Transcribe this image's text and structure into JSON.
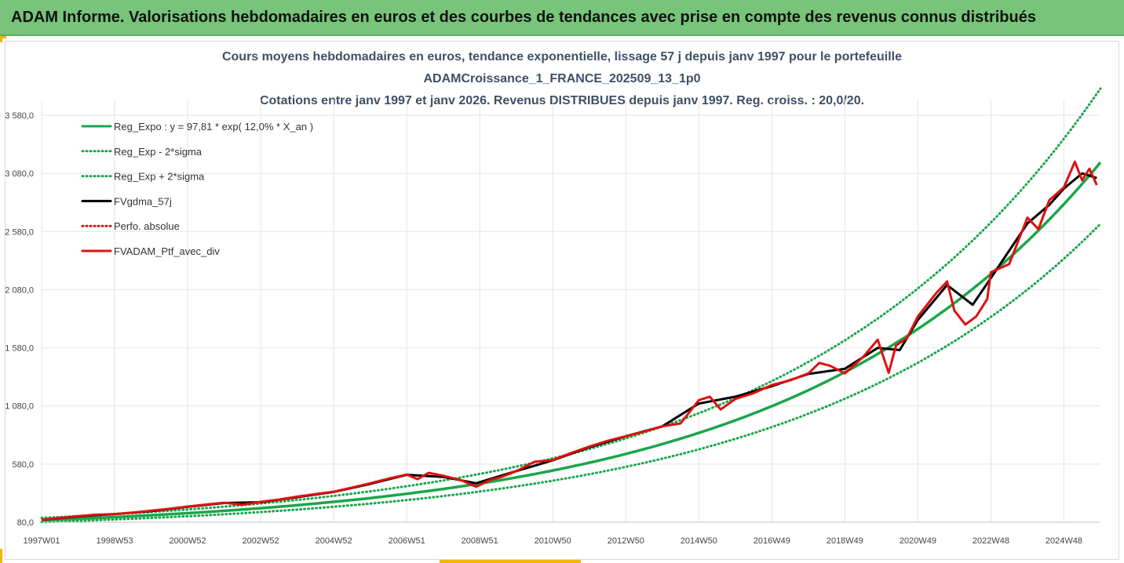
{
  "header": {
    "title": "ADAM Informe. Valorisations hebdomadaires en euros et des courbes de tendances avec prise en compte des revenus connus distribués"
  },
  "colors": {
    "header_bg": "#77c47a",
    "trend": "#1aa64a",
    "smooth": "#000000",
    "portfolio": "#e01010",
    "accent": "#f2b705"
  },
  "chart_data": {
    "type": "line",
    "title_lines": [
      "Cours moyens hebdomadaires  en euros, tendance exponentielle, lissage 57 j depuis janv 1997 pour le portefeuille",
      "ADAMCroissance_1_FRANCE_202509_13_1p0",
      "Cotations entre janv 1997 et janv 2026. Revenus DISTRIBUES depuis janv 1997. Reg. croiss. : 20,0/20."
    ],
    "x_tick_labels": [
      "1997W01",
      "1998W53",
      "2000W52",
      "2002W52",
      "2004W52",
      "2006W51",
      "2008W51",
      "2010W50",
      "2012W50",
      "2014W50",
      "2016W49",
      "2018W49",
      "2020W49",
      "2022W48",
      "2024W48"
    ],
    "x_ticks_years": [
      1997.0,
      1999.0,
      2001.0,
      2003.0,
      2005.0,
      2007.0,
      2009.0,
      2011.0,
      2013.0,
      2015.0,
      2017.0,
      2019.0,
      2021.0,
      2023.0,
      2025.0
    ],
    "xlim": [
      1997.0,
      2026.0
    ],
    "y_tick_labels": [
      "80,0",
      "580,0",
      "1 080,0",
      "1 580,0",
      "2 080,0",
      "2 580,0",
      "3 080,0",
      "3 580,0"
    ],
    "y_ticks": [
      80,
      580,
      1080,
      1580,
      2080,
      2580,
      3080,
      3580
    ],
    "ylim": [
      80,
      3580
    ],
    "regression": {
      "a": 97.81,
      "rate": 0.12,
      "band_factor": 1.2
    },
    "legend": [
      {
        "label": "Reg_Expo : y = 97,81 * exp( 12,0% *  X_an )",
        "style": "solid",
        "color": "#1aa64a"
      },
      {
        "label": "Reg_Exp - 2*sigma",
        "style": "dotted",
        "color": "#1aa64a"
      },
      {
        "label": "Reg_Exp + 2*sigma",
        "style": "dotted",
        "color": "#1aa64a"
      },
      {
        "label": "FVgdma_57j",
        "style": "solid",
        "color": "#000000"
      },
      {
        "label": "Perfo. absolue",
        "style": "dotted",
        "color": "#e01010"
      },
      {
        "label": "FVADAM_Ptf_avec_div",
        "style": "solid",
        "color": "#e01010"
      }
    ],
    "portfolio_series": {
      "name": "FVADAM_Ptf_avec_div",
      "x": [
        1997.0,
        1997.5,
        1998.0,
        1998.5,
        1999.0,
        1999.5,
        2000.0,
        2000.5,
        2001.0,
        2001.5,
        2002.0,
        2002.5,
        2003.0,
        2003.5,
        2004.0,
        2004.5,
        2005.0,
        2005.5,
        2006.0,
        2006.5,
        2007.0,
        2007.3,
        2007.6,
        2008.0,
        2008.5,
        2008.9,
        2009.3,
        2009.6,
        2010.0,
        2010.5,
        2011.0,
        2011.5,
        2012.0,
        2012.5,
        2013.0,
        2013.5,
        2014.0,
        2014.5,
        2015.0,
        2015.3,
        2015.6,
        2016.0,
        2016.5,
        2017.0,
        2017.5,
        2018.0,
        2018.3,
        2018.6,
        2019.0,
        2019.5,
        2019.9,
        2020.2,
        2020.4,
        2020.7,
        2021.0,
        2021.5,
        2021.8,
        2022.0,
        2022.3,
        2022.6,
        2022.9,
        2023.0,
        2023.5,
        2024.0,
        2024.3,
        2024.6,
        2025.0,
        2025.3,
        2025.5,
        2025.7,
        2025.9
      ],
      "y": [
        100,
        118,
        132,
        145,
        150,
        162,
        180,
        195,
        215,
        232,
        248,
        230,
        255,
        275,
        300,
        322,
        342,
        378,
        415,
        455,
        490,
        450,
        505,
        480,
        440,
        385,
        445,
        470,
        520,
        600,
        615,
        675,
        730,
        780,
        820,
        860,
        905,
        930,
        1130,
        1160,
        1050,
        1140,
        1190,
        1260,
        1300,
        1360,
        1450,
        1425,
        1360,
        1500,
        1650,
        1365,
        1600,
        1665,
        1850,
        2050,
        2150,
        1900,
        1780,
        1850,
        2000,
        2230,
        2300,
        2700,
        2600,
        2850,
        2960,
        3180,
        3020,
        3120,
        2980
      ]
    },
    "smooth_series": {
      "name": "FVgdma_57j",
      "x": [
        1997.0,
        1998.0,
        1999.0,
        2000.0,
        2001.0,
        2002.0,
        2003.0,
        2004.0,
        2005.0,
        2006.0,
        2007.0,
        2008.0,
        2008.9,
        2010.0,
        2011.0,
        2012.0,
        2013.0,
        2014.0,
        2015.0,
        2016.0,
        2017.0,
        2018.0,
        2019.0,
        2019.9,
        2020.5,
        2021.0,
        2021.8,
        2022.5,
        2023.0,
        2024.0,
        2024.6,
        2025.0,
        2025.5,
        2025.9
      ],
      "y": [
        100,
        130,
        150,
        175,
        212,
        245,
        252,
        295,
        340,
        410,
        488,
        470,
        415,
        520,
        612,
        725,
        820,
        905,
        1100,
        1160,
        1250,
        1355,
        1400,
        1580,
        1560,
        1820,
        2120,
        1950,
        2180,
        2650,
        2810,
        2950,
        3080,
        3040
      ]
    }
  }
}
